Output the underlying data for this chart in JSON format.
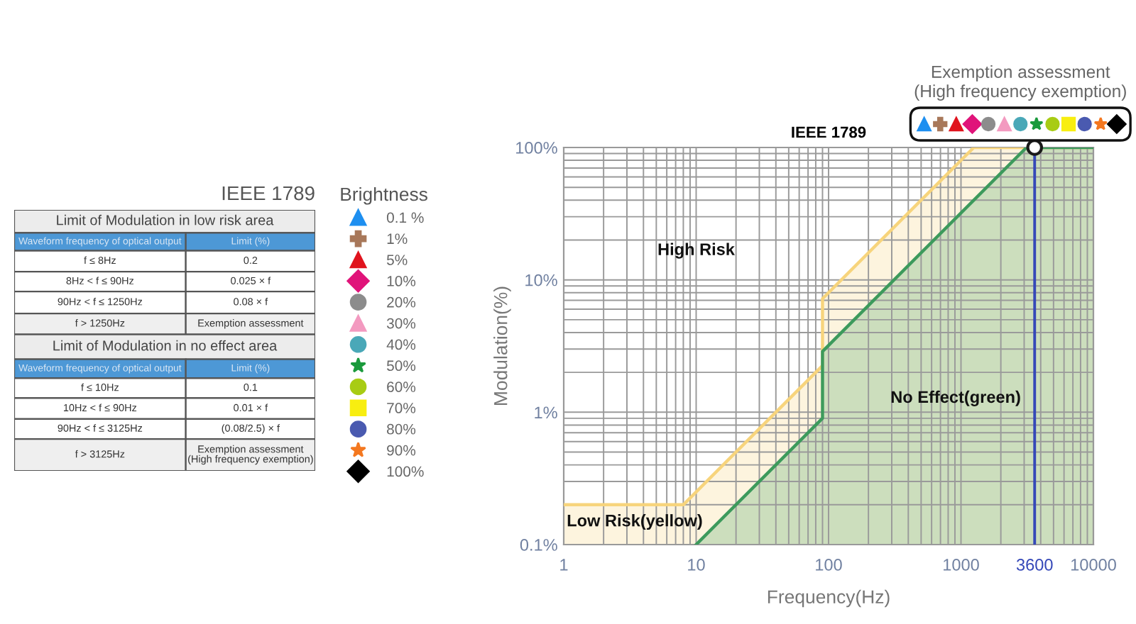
{
  "chart_data": [
    {
      "type": "other",
      "title": "IEEE 1789",
      "annotations": [
        "Limit of Modulation in low risk area",
        "Waveform frequency of optical output",
        "Limit (%)",
        "f ≤ 8Hz",
        "0.2",
        "8Hz < f ≤ 90Hz",
        "0.025 × f",
        "90Hz < f ≤ 1250Hz",
        "0.08 × f",
        "f > 1250Hz",
        "Exemption assessment",
        "Limit of Modulation in no effect area",
        "Waveform frequency of optical output",
        "Limit (%)",
        "f ≤ 10Hz",
        "0.1",
        "10Hz < f ≤ 90Hz",
        "0.01 × f",
        "90Hz < f ≤ 3125Hz",
        "(0.08/2.5) × f",
        "f > 3125Hz",
        "Exemption assessment\n(High frequency exemption)"
      ]
    },
    {
      "type": "area",
      "title": "IEEE 1789",
      "xlabel": "Frequency(Hz)",
      "ylabel": "Modulation(%)",
      "legend_title": "Brightness",
      "log": "xy",
      "xlim": [
        1,
        10000
      ],
      "ylim": [
        0.1,
        100
      ],
      "xticks": [
        1,
        {
          "value": 2,
          "label": null
        },
        {
          "value": 3,
          "label": null
        },
        {
          "value": 4,
          "label": null
        },
        {
          "value": 5,
          "label": null
        },
        {
          "value": 6,
          "label": null
        },
        {
          "value": 7,
          "label": null
        },
        {
          "value": 8,
          "label": null
        },
        {
          "value": 9,
          "label": null
        },
        10,
        {
          "value": 20,
          "label": null
        },
        {
          "value": 30,
          "label": null
        },
        {
          "value": 40,
          "label": null
        },
        {
          "value": 50,
          "label": null
        },
        {
          "value": 60,
          "label": null
        },
        {
          "value": 70,
          "label": null
        },
        {
          "value": 80,
          "label": null
        },
        {
          "value": 90,
          "label": null
        },
        100,
        {
          "value": 200,
          "label": null
        },
        {
          "value": 300,
          "label": null
        },
        {
          "value": 400,
          "label": null
        },
        {
          "value": 500,
          "label": null
        },
        {
          "value": 600,
          "label": null
        },
        {
          "value": 700,
          "label": null
        },
        {
          "value": 800,
          "label": null
        },
        {
          "value": 900,
          "label": null
        },
        1000,
        {
          "value": 2000,
          "label": null
        },
        {
          "value": 3000,
          "label": null
        },
        3600,
        {
          "value": 4000,
          "label": null
        },
        {
          "value": 5000,
          "label": null
        },
        {
          "value": 6000,
          "label": null
        },
        {
          "value": 7000,
          "label": null
        },
        {
          "value": 8000,
          "label": null
        },
        {
          "value": 9000,
          "label": null
        },
        10000
      ],
      "yticks": [
        {
          "value": 0.1,
          "label": "0.1%"
        },
        {
          "value": 0.2,
          "label": null
        },
        {
          "value": 0.3,
          "label": null
        },
        {
          "value": 0.4,
          "label": null
        },
        {
          "value": 0.5,
          "label": null
        },
        {
          "value": 0.6,
          "label": null
        },
        {
          "value": 0.7,
          "label": null
        },
        {
          "value": 0.8,
          "label": null
        },
        {
          "value": 0.9,
          "label": null
        },
        {
          "value": 1,
          "label": "1%"
        },
        {
          "value": 2,
          "label": null
        },
        {
          "value": 3,
          "label": null
        },
        {
          "value": 4,
          "label": null
        },
        {
          "value": 5,
          "label": null
        },
        {
          "value": 6,
          "label": null
        },
        {
          "value": 7,
          "label": null
        },
        {
          "value": 8,
          "label": null
        },
        {
          "value": 9,
          "label": null
        },
        {
          "value": 10,
          "label": "10%"
        },
        {
          "value": 20,
          "label": null
        },
        {
          "value": 30,
          "label": null
        },
        {
          "value": 40,
          "label": null
        },
        {
          "value": 50,
          "label": null
        },
        {
          "value": 60,
          "label": null
        },
        {
          "value": 70,
          "label": null
        },
        {
          "value": 80,
          "label": null
        },
        {
          "value": 90,
          "label": null
        },
        {
          "value": 100,
          "label": "100%"
        }
      ],
      "grid": true,
      "legend": "left",
      "ref_lines": [
        {
          "axis": "x",
          "value": 3600,
          "color": "#3548b8"
        }
      ],
      "annotations": [
        "High Risk",
        "Low Risk(yellow)",
        "No Effect(green)",
        {
          "text": "Exemption assessment\n(High frequency exemption)",
          "x": 3600,
          "y": 100
        }
      ],
      "series": [
        {
          "type": "area",
          "color": "#f7d47c",
          "x": [
            1,
            8,
            90,
            90,
            1250,
            10000
          ],
          "values": [
            0.2,
            0.2,
            2.25,
            7.2,
            100,
            100
          ]
        },
        {
          "type": "area",
          "color": "#3d9a5c",
          "x": [
            10,
            90,
            90,
            3125,
            10000
          ],
          "values": [
            0.1,
            0.9,
            2.88,
            100,
            100
          ]
        },
        {
          "type": "scatter",
          "color": "#1a1a1a",
          "marker": "circle",
          "x": [
            3600
          ],
          "values": [
            100
          ]
        },
        {
          "type": "scatter",
          "name": "0.1 %",
          "color": "#1e8ff0",
          "marker": "triangle"
        },
        {
          "type": "scatter",
          "name": "1%",
          "color": "#a8785a",
          "marker": "cross"
        },
        {
          "type": "scatter",
          "name": "5%",
          "color": "#e0141e",
          "marker": "triangle"
        },
        {
          "type": "scatter",
          "name": "10%",
          "color": "#e0147a",
          "marker": "diamond"
        },
        {
          "type": "scatter",
          "name": "20%",
          "color": "#8c8c8c",
          "marker": "circle"
        },
        {
          "type": "scatter",
          "name": "30%",
          "color": "#f39ac0",
          "marker": "triangle"
        },
        {
          "type": "scatter",
          "name": "40%",
          "color": "#4aa8b8",
          "marker": "circle"
        },
        {
          "type": "scatter",
          "name": "50%",
          "color": "#1a9a3c",
          "marker": "star"
        },
        {
          "type": "scatter",
          "name": "60%",
          "color": "#a8cc14",
          "marker": "circle"
        },
        {
          "type": "scatter",
          "name": "70%",
          "color": "#f8ee10",
          "marker": "square"
        },
        {
          "type": "scatter",
          "name": "80%",
          "color": "#4a5ab0",
          "marker": "circle"
        },
        {
          "type": "scatter",
          "name": "90%",
          "color": "#f47820",
          "marker": "star"
        },
        {
          "type": "scatter",
          "name": "100%",
          "color": "#000000",
          "marker": "diamond"
        }
      ]
    }
  ]
}
